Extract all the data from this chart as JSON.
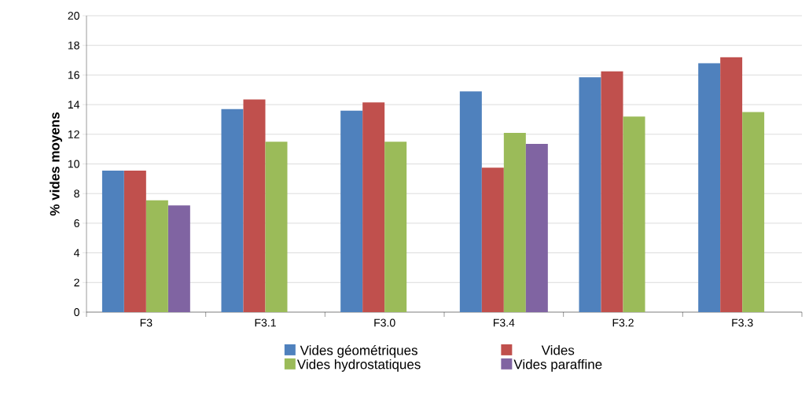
{
  "chart_data": {
    "type": "bar",
    "ylabel": "% vides moyens",
    "categories": [
      "F3",
      "F3.1",
      "F3.0",
      "F3.4",
      "F3.2",
      "F3.3"
    ],
    "series": [
      {
        "name": "Vides géométriques",
        "color": "#4f81bd",
        "values": [
          9.55,
          13.7,
          13.6,
          14.9,
          15.85,
          16.8
        ]
      },
      {
        "name": "Vides",
        "color": "#c0504d",
        "values": [
          9.55,
          14.35,
          14.15,
          9.75,
          16.25,
          17.2
        ]
      },
      {
        "name": "Vides hydrostatiques",
        "color": "#9bbb59",
        "values": [
          7.55,
          11.5,
          11.5,
          12.1,
          13.2,
          13.5
        ]
      },
      {
        "name": "Vides paraffine",
        "color": "#8064a2",
        "values": [
          7.2,
          null,
          null,
          11.35,
          null,
          null
        ]
      }
    ],
    "ylim": [
      0,
      20
    ],
    "yticks": [
      0,
      2,
      4,
      6,
      8,
      10,
      12,
      14,
      16,
      18,
      20
    ],
    "grid": "y",
    "legend": "bottom"
  }
}
